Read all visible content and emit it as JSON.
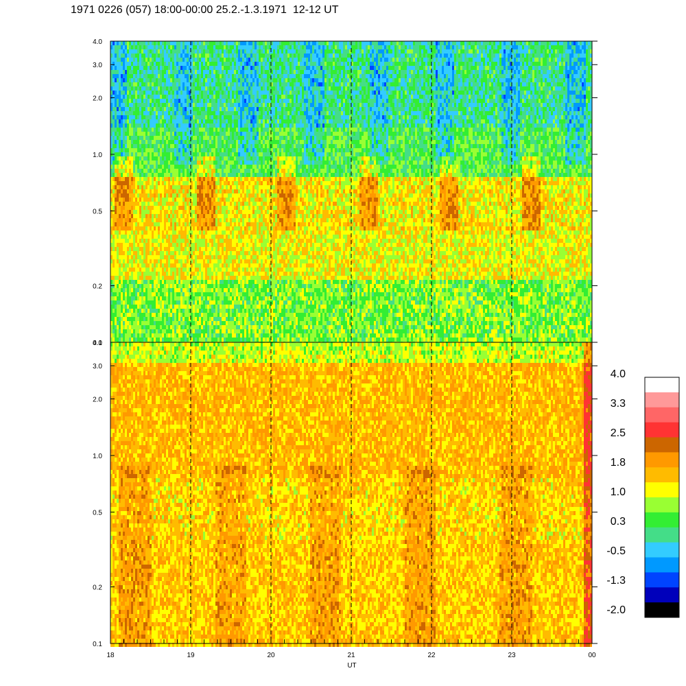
{
  "title": "1971 0226 (057) 18:00-00:00 25.2.-1.3.1971  12-12 UT",
  "chart_data": {
    "type": "heatmap",
    "xlabel": "UT",
    "x_ticks": [
      "18",
      "19",
      "20",
      "21",
      "22",
      "23",
      "00"
    ],
    "x_range": [
      18,
      24
    ],
    "y_scale": "log",
    "y_ticks": [
      "0.1",
      "0.2",
      "0.5",
      "1.0",
      "2.0",
      "3.0",
      "4.0"
    ],
    "y_values": [
      0.1,
      0.2,
      0.5,
      1.0,
      2.0,
      3.0,
      4.0
    ],
    "y_range": [
      0.1,
      4.0
    ],
    "dashed_hour_lines": [
      19,
      20,
      21,
      22,
      23
    ],
    "panels": [
      {
        "name": "upper",
        "dominant": "green-cyan at high frequency, orange-yellow bursts near 0.5-1.0, yellow-green below 0.4"
      },
      {
        "name": "lower",
        "dominant": "orange-yellow throughout, green speckle at top"
      }
    ],
    "colorbar": {
      "labels": [
        "4.0",
        "3.3",
        "2.5",
        "1.8",
        "1.0",
        "0.3",
        "-0.5",
        "-1.3",
        "-2.0"
      ],
      "colors": [
        "#ffffff",
        "#ff9999",
        "#ff6666",
        "#ff3333",
        "#cc6600",
        "#ff9900",
        "#ffbb00",
        "#ffff00",
        "#99ff33",
        "#33ee33",
        "#44dd88",
        "#33ccff",
        "#0099ff",
        "#0044ff",
        "#0000bb",
        "#000000"
      ]
    }
  }
}
